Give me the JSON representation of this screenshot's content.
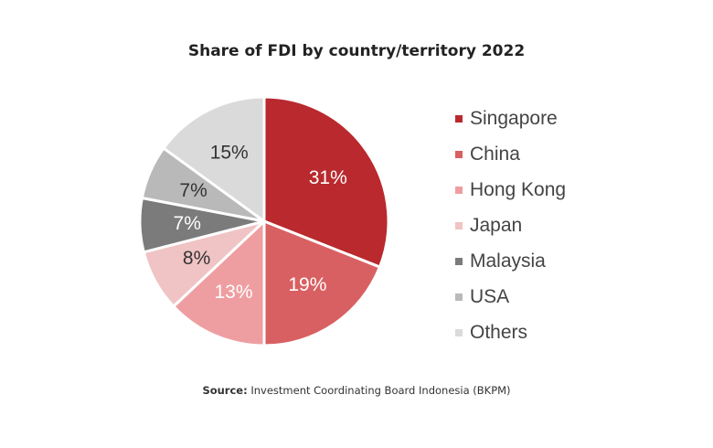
{
  "chart_data": {
    "type": "pie",
    "title": "Share of FDI by country/territory 2022",
    "categories": [
      "Singapore",
      "China",
      "Hong Kong",
      "Japan",
      "Malaysia",
      "USA",
      "Others"
    ],
    "values": [
      31,
      19,
      13,
      8,
      7,
      7,
      15
    ],
    "value_labels": [
      "31%",
      "19%",
      "13%",
      "8%",
      "7%",
      "7%",
      "15%"
    ],
    "colors": [
      "#B9292E",
      "#D96062",
      "#EE9EA1",
      "#F0C3C4",
      "#7B7B7B",
      "#B9B9B9",
      "#DADADA"
    ],
    "label_colors": [
      "#ffffff",
      "#ffffff",
      "#ffffff",
      "#333333",
      "#ffffff",
      "#333333",
      "#333333"
    ],
    "legend": "right",
    "start_angle": "12 o'clock",
    "direction": "clockwise"
  },
  "source": {
    "key": "Source:",
    "text": "Investment Coordinating Board Indonesia (BKPM)"
  }
}
